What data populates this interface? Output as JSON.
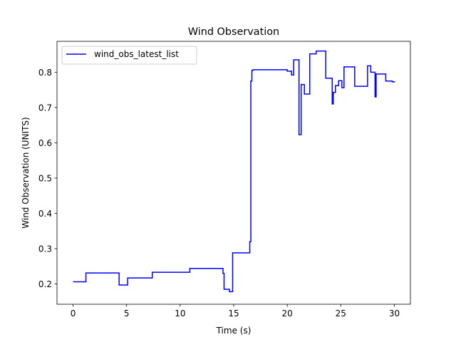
{
  "chart_data": {
    "type": "line",
    "title": "Wind Observation",
    "xlabel": "Time (s)",
    "ylabel": "Wind Observation (UNITS)",
    "xlim": [
      -1.5,
      31.5
    ],
    "ylim": [
      0.1425,
      0.8875
    ],
    "xticks": [
      0,
      5,
      10,
      15,
      20,
      25,
      30
    ],
    "yticks": [
      0.2,
      0.3,
      0.4,
      0.5,
      0.6,
      0.7,
      0.8
    ],
    "grid": false,
    "legend_position": "upper-left",
    "series": [
      {
        "name": "wind_obs_latest_list",
        "color": "#0000ff",
        "step": true,
        "x": [
          0,
          1.2,
          4.3,
          5.1,
          7.4,
          10.9,
          14.0,
          14.1,
          14.2,
          14.6,
          14.9,
          16.5,
          16.6,
          16.7,
          16.8,
          17.1,
          20.0,
          20.4,
          20.6,
          21.1,
          21.3,
          21.6,
          22.1,
          22.3,
          22.6,
          22.7,
          23.1,
          23.6,
          24.2,
          24.3,
          24.5,
          24.8,
          25.1,
          25.3,
          25.6,
          26.3,
          26.8,
          27.5,
          27.8,
          28.2,
          28.3,
          28.6,
          29.2,
          29.8,
          30.0
        ],
        "y": [
          0.206,
          0.231,
          0.197,
          0.217,
          0.233,
          0.244,
          0.23,
          0.185,
          0.185,
          0.178,
          0.288,
          0.32,
          0.775,
          0.805,
          0.807,
          0.807,
          0.803,
          0.792,
          0.835,
          0.623,
          0.765,
          0.738,
          0.852,
          0.852,
          0.852,
          0.86,
          0.86,
          0.783,
          0.71,
          0.743,
          0.762,
          0.776,
          0.756,
          0.815,
          0.815,
          0.76,
          0.76,
          0.818,
          0.8,
          0.73,
          0.795,
          0.795,
          0.775,
          0.773,
          0.771
        ]
      }
    ]
  }
}
